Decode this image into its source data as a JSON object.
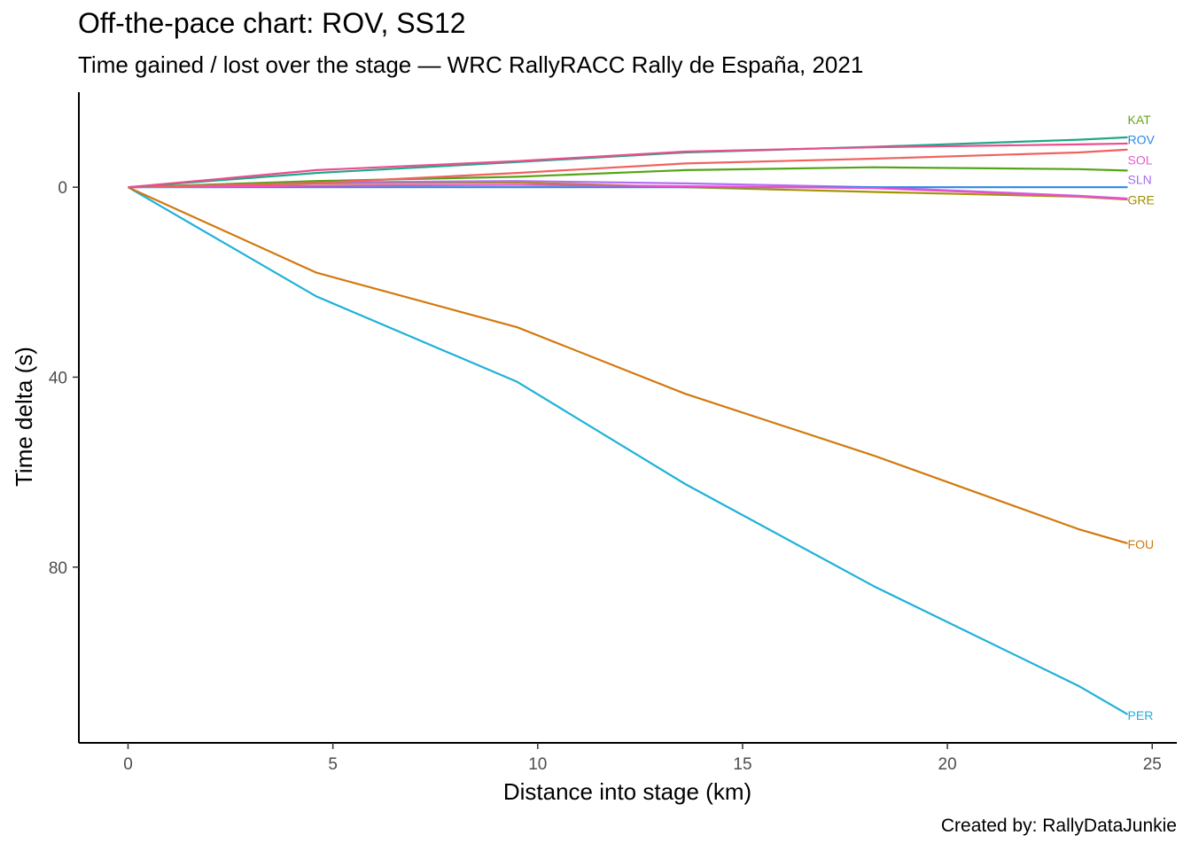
{
  "chart_data": {
    "type": "line",
    "title": "Off-the-pace chart: ROV, SS12",
    "subtitle": "Time gained / lost over the stage — WRC RallyRACC Rally de España, 2021",
    "caption": "Created by: RallyDataJunkie",
    "xlabel": "Distance into stage (km)",
    "ylabel": "Time delta (s)",
    "xlim": [
      -1.2,
      25.6
    ],
    "ylim": [
      -20,
      117
    ],
    "y_reversed": true,
    "grid": false,
    "legend": "none",
    "x_ticks": [
      0,
      5,
      10,
      15,
      20,
      25
    ],
    "y_ticks": [
      0,
      40,
      80
    ],
    "series": [
      {
        "name": "PER",
        "color": "#1FB1D9",
        "x": [
          0,
          4.6,
          9.5,
          13.6,
          18.2,
          23.2,
          24.4
        ],
        "y": [
          0,
          23,
          41,
          62.5,
          84,
          105,
          111
        ]
      },
      {
        "name": "FOU",
        "color": "#D2790E",
        "x": [
          0,
          4.6,
          9.5,
          13.6,
          18.2,
          23.2,
          24.4
        ],
        "y": [
          0,
          18,
          29.5,
          43.5,
          56.5,
          72,
          75
        ]
      },
      {
        "name": "GRE",
        "color": "#A39400",
        "x": [
          0,
          4.6,
          9.5,
          13.6,
          18.2,
          23.2,
          24.4
        ],
        "y": [
          0,
          -0.8,
          -1,
          0,
          1,
          2,
          2.6
        ]
      },
      {
        "name": "SLN",
        "color": "#B36EF5",
        "x": [
          0,
          4.6,
          9.5,
          13.6,
          18.2,
          23.2,
          24.4
        ],
        "y": [
          0,
          -1,
          -1.3,
          -0.8,
          0,
          1.8,
          2.4
        ]
      },
      {
        "name": "ROV",
        "color": "#2B88E8",
        "x": [
          0,
          4.6,
          9.5,
          13.6,
          18.2,
          23.2,
          24.4
        ],
        "y": [
          0,
          0,
          0,
          0,
          0,
          0,
          0
        ]
      },
      {
        "name": "SOL",
        "color": "#ED4FC8",
        "x": [
          0,
          4.6,
          9.5,
          13.6,
          18.2,
          23.2,
          24.4
        ],
        "y": [
          0,
          -0.3,
          -0.5,
          -0.2,
          0.2,
          1.9,
          2.5
        ]
      },
      {
        "name": "",
        "color": "#54A417",
        "x": [
          0,
          4.6,
          9.5,
          13.6,
          18.2,
          23.2,
          24.4
        ],
        "y": [
          0,
          -1.3,
          -2.2,
          -3.6,
          -4.2,
          -3.8,
          -3.5
        ]
      },
      {
        "name": "",
        "color": "#F0625F",
        "x": [
          0,
          4.6,
          9.5,
          13.6,
          18.2,
          23.2,
          24.4
        ],
        "y": [
          0,
          -0.9,
          -3,
          -5,
          -6,
          -7.3,
          -7.9
        ]
      },
      {
        "name": "KAT",
        "color": "#1FA88B",
        "x": [
          0,
          4.6,
          9.5,
          13.6,
          18.2,
          23.2,
          24.4
        ],
        "y": [
          0,
          -3,
          -5.3,
          -7.3,
          -8.5,
          -10,
          -10.5
        ]
      },
      {
        "name": "",
        "color": "#EC4D8D",
        "x": [
          0,
          4.6,
          9.5,
          13.6,
          18.2,
          23.2,
          24.4
        ],
        "y": [
          0,
          -3.6,
          -5.5,
          -7.5,
          -8.4,
          -9,
          -9.2
        ]
      }
    ],
    "end_labels": [
      {
        "text": "KAT",
        "color": "#62A719",
        "y": -14.2
      },
      {
        "text": "ROV",
        "color": "#2B88E8",
        "y": -10
      },
      {
        "text": "SOL",
        "color": "#E55CCB",
        "y": -5.7
      },
      {
        "text": "SLN",
        "color": "#A66CF0",
        "y": -1.6
      },
      {
        "text": "GRE",
        "color": "#9C9000",
        "y": 2.7
      },
      {
        "text": "FOU",
        "color": "#D2790E",
        "y": 75.2
      },
      {
        "text": "PER",
        "color": "#1FB1D9",
        "y": 111.2
      }
    ]
  }
}
